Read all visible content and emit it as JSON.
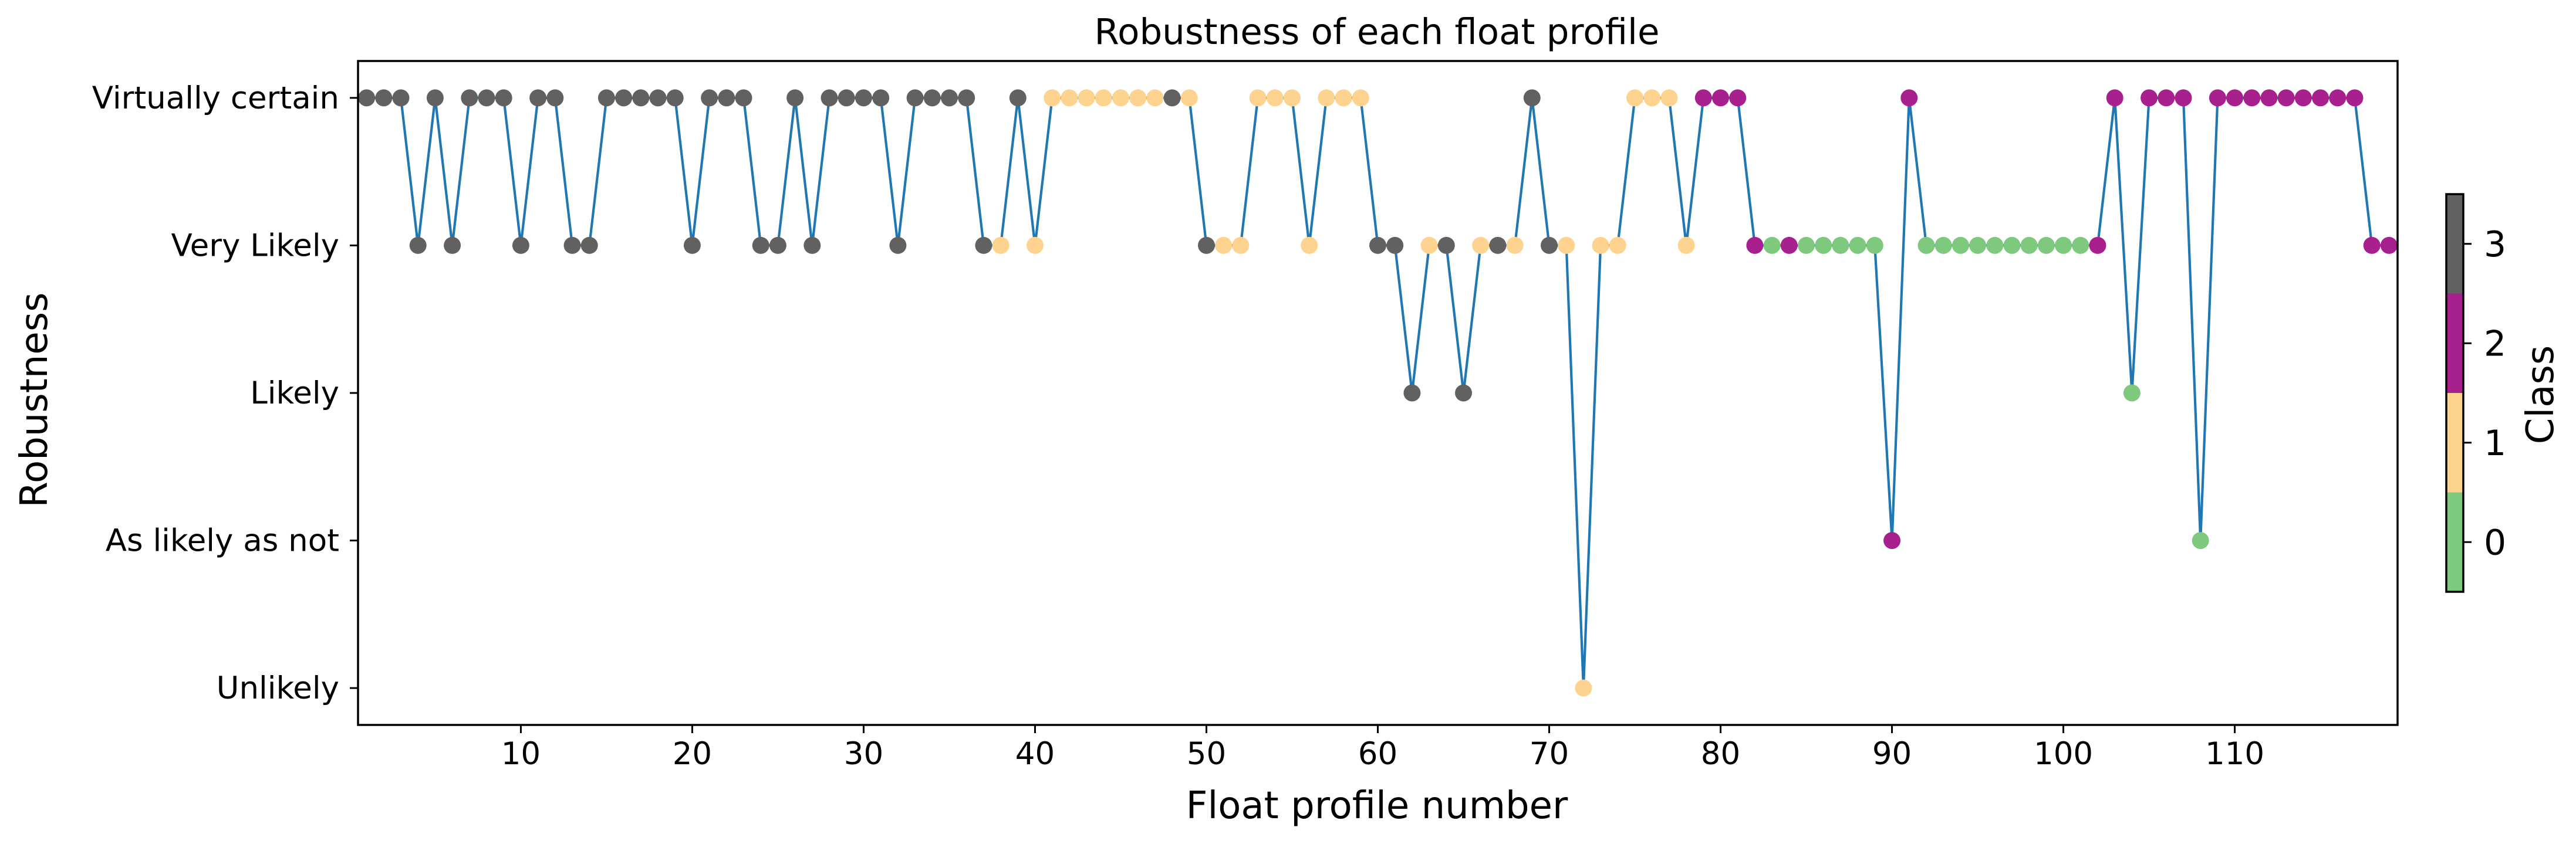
{
  "chart_data": {
    "type": "line",
    "title": "Robustness of each float profile",
    "xlabel": "Float profile number",
    "ylabel": "Robustness",
    "xlim": [
      0.5,
      119.5
    ],
    "ylim": [
      -0.25,
      4.25
    ],
    "xticks": [
      10,
      20,
      30,
      40,
      50,
      60,
      70,
      80,
      90,
      100,
      110
    ],
    "yticks": [
      {
        "value": 4,
        "label": "Virtually certain"
      },
      {
        "value": 3,
        "label": "Very Likely"
      },
      {
        "value": 2,
        "label": "Likely"
      },
      {
        "value": 1,
        "label": "As likely as not"
      },
      {
        "value": 0,
        "label": "Unlikely"
      }
    ],
    "line_color": "#1f77b4",
    "class_colors": [
      "#7fc97f",
      "#fdd38f",
      "#a7208e",
      "#616161"
    ],
    "colorbar": {
      "label": "Class",
      "ticks": [
        "0",
        "1",
        "2",
        "3"
      ]
    },
    "grid": false,
    "series": [
      {
        "x": [
          1,
          2,
          3,
          4,
          5,
          6,
          7,
          8,
          9,
          10,
          11,
          12,
          13,
          14,
          15,
          16,
          17,
          18,
          19,
          20,
          21,
          22,
          23,
          24,
          25,
          26,
          27,
          28,
          29,
          30,
          31,
          32,
          33,
          34,
          35,
          36,
          37,
          38,
          39,
          40,
          41,
          42,
          43,
          44,
          45,
          46,
          47,
          48,
          49,
          50,
          51,
          52,
          53,
          54,
          55,
          56,
          57,
          58,
          59,
          60,
          61,
          62,
          63,
          64,
          65,
          66,
          67,
          68,
          69,
          70,
          71,
          72,
          73,
          74,
          75,
          76,
          77,
          78,
          79,
          80,
          81,
          82,
          83,
          84,
          85,
          86,
          87,
          88,
          89,
          90,
          91,
          92,
          93,
          94,
          95,
          96,
          97,
          98,
          99,
          100,
          101,
          102,
          103,
          104,
          105,
          106,
          107,
          108,
          109,
          110,
          111,
          112,
          113,
          114,
          115,
          116,
          117,
          118,
          119
        ],
        "y": [
          4,
          4,
          4,
          3,
          4,
          3,
          4,
          4,
          4,
          3,
          4,
          4,
          3,
          3,
          4,
          4,
          4,
          4,
          4,
          3,
          4,
          4,
          4,
          3,
          3,
          4,
          3,
          4,
          4,
          4,
          4,
          3,
          4,
          4,
          4,
          4,
          3,
          3,
          4,
          3,
          4,
          4,
          4,
          4,
          4,
          4,
          4,
          4,
          4,
          3,
          3,
          3,
          4,
          4,
          4,
          3,
          4,
          4,
          4,
          3,
          3,
          2,
          3,
          3,
          2,
          3,
          3,
          3,
          4,
          3,
          3,
          0,
          3,
          3,
          4,
          4,
          4,
          3,
          4,
          4,
          4,
          3,
          3,
          3,
          3,
          3,
          3,
          3,
          3,
          1,
          4,
          3,
          3,
          3,
          3,
          3,
          3,
          3,
          3,
          3,
          3,
          3,
          4,
          2,
          4,
          4,
          4,
          1,
          4,
          4,
          4,
          4,
          4,
          4,
          4,
          4,
          4,
          3,
          3
        ],
        "class": [
          3,
          3,
          3,
          3,
          3,
          3,
          3,
          3,
          3,
          3,
          3,
          3,
          3,
          3,
          3,
          3,
          3,
          3,
          3,
          3,
          3,
          3,
          3,
          3,
          3,
          3,
          3,
          3,
          3,
          3,
          3,
          3,
          3,
          3,
          3,
          3,
          3,
          1,
          3,
          1,
          1,
          1,
          1,
          1,
          1,
          1,
          1,
          3,
          1,
          3,
          1,
          1,
          1,
          1,
          1,
          1,
          1,
          1,
          1,
          3,
          3,
          3,
          1,
          3,
          3,
          1,
          3,
          1,
          3,
          3,
          1,
          1,
          1,
          1,
          1,
          1,
          1,
          1,
          2,
          2,
          2,
          2,
          0,
          2,
          0,
          0,
          0,
          0,
          0,
          2,
          2,
          0,
          0,
          0,
          0,
          0,
          0,
          0,
          0,
          0,
          0,
          2,
          2,
          0,
          2,
          2,
          2,
          0,
          2,
          2,
          2,
          2,
          2,
          2,
          2,
          2,
          2,
          2,
          2
        ]
      }
    ]
  }
}
